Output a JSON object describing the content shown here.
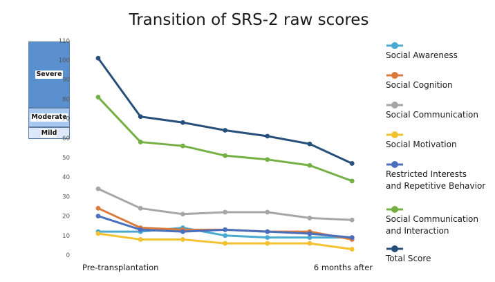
{
  "chart_data": {
    "type": "line",
    "title": "Transition of SRS-2 raw scores",
    "xlabel": "",
    "ylabel": "",
    "ylim": [
      0,
      110
    ],
    "yticks": [
      0,
      10,
      20,
      30,
      40,
      50,
      60,
      70,
      80,
      90,
      100,
      110
    ],
    "x": [
      1,
      2,
      3,
      4,
      5,
      6,
      7
    ],
    "x_labels": [
      {
        "label": "Pre-transplantation",
        "at": 1
      },
      {
        "label": "6 months after",
        "at": 7
      }
    ],
    "grid": false,
    "legend_position": "right",
    "severity_bands": [
      {
        "label": "Severe",
        "from": 76,
        "to": 110,
        "color": "#5a8fd0"
      },
      {
        "label": "Moderate",
        "from": 66,
        "to": 76,
        "color": "#a9c8f0"
      },
      {
        "label": "Mild",
        "from": 60,
        "to": 66,
        "color": "#dde9fb"
      }
    ],
    "series": [
      {
        "name": "Social Awareness",
        "color": "#4aa9cf",
        "values": [
          12,
          12,
          14,
          10,
          9,
          9,
          9
        ]
      },
      {
        "name": "Social Cognition",
        "color": "#d97b3c",
        "values": [
          24,
          14,
          13,
          13,
          12,
          12,
          8
        ]
      },
      {
        "name": "Social Communication",
        "color": "#a6a6a6",
        "values": [
          34,
          24,
          21,
          22,
          22,
          19,
          18
        ]
      },
      {
        "name": "Social Motivation",
        "color": "#f2c230",
        "values": [
          11,
          8,
          8,
          6,
          6,
          6,
          3
        ]
      },
      {
        "name": "Restricted Interests\nand Repetitive Behavior",
        "color": "#4a6fbd",
        "values": [
          20,
          13,
          12,
          13,
          12,
          11,
          9
        ]
      },
      {
        "name": "Social Communication\nand Interaction",
        "color": "#75b044",
        "values": [
          81,
          58,
          56,
          51,
          49,
          46,
          38
        ]
      },
      {
        "name": "Total Score",
        "color": "#26507a",
        "values": [
          101,
          71,
          68,
          64,
          61,
          57,
          47
        ]
      }
    ]
  }
}
